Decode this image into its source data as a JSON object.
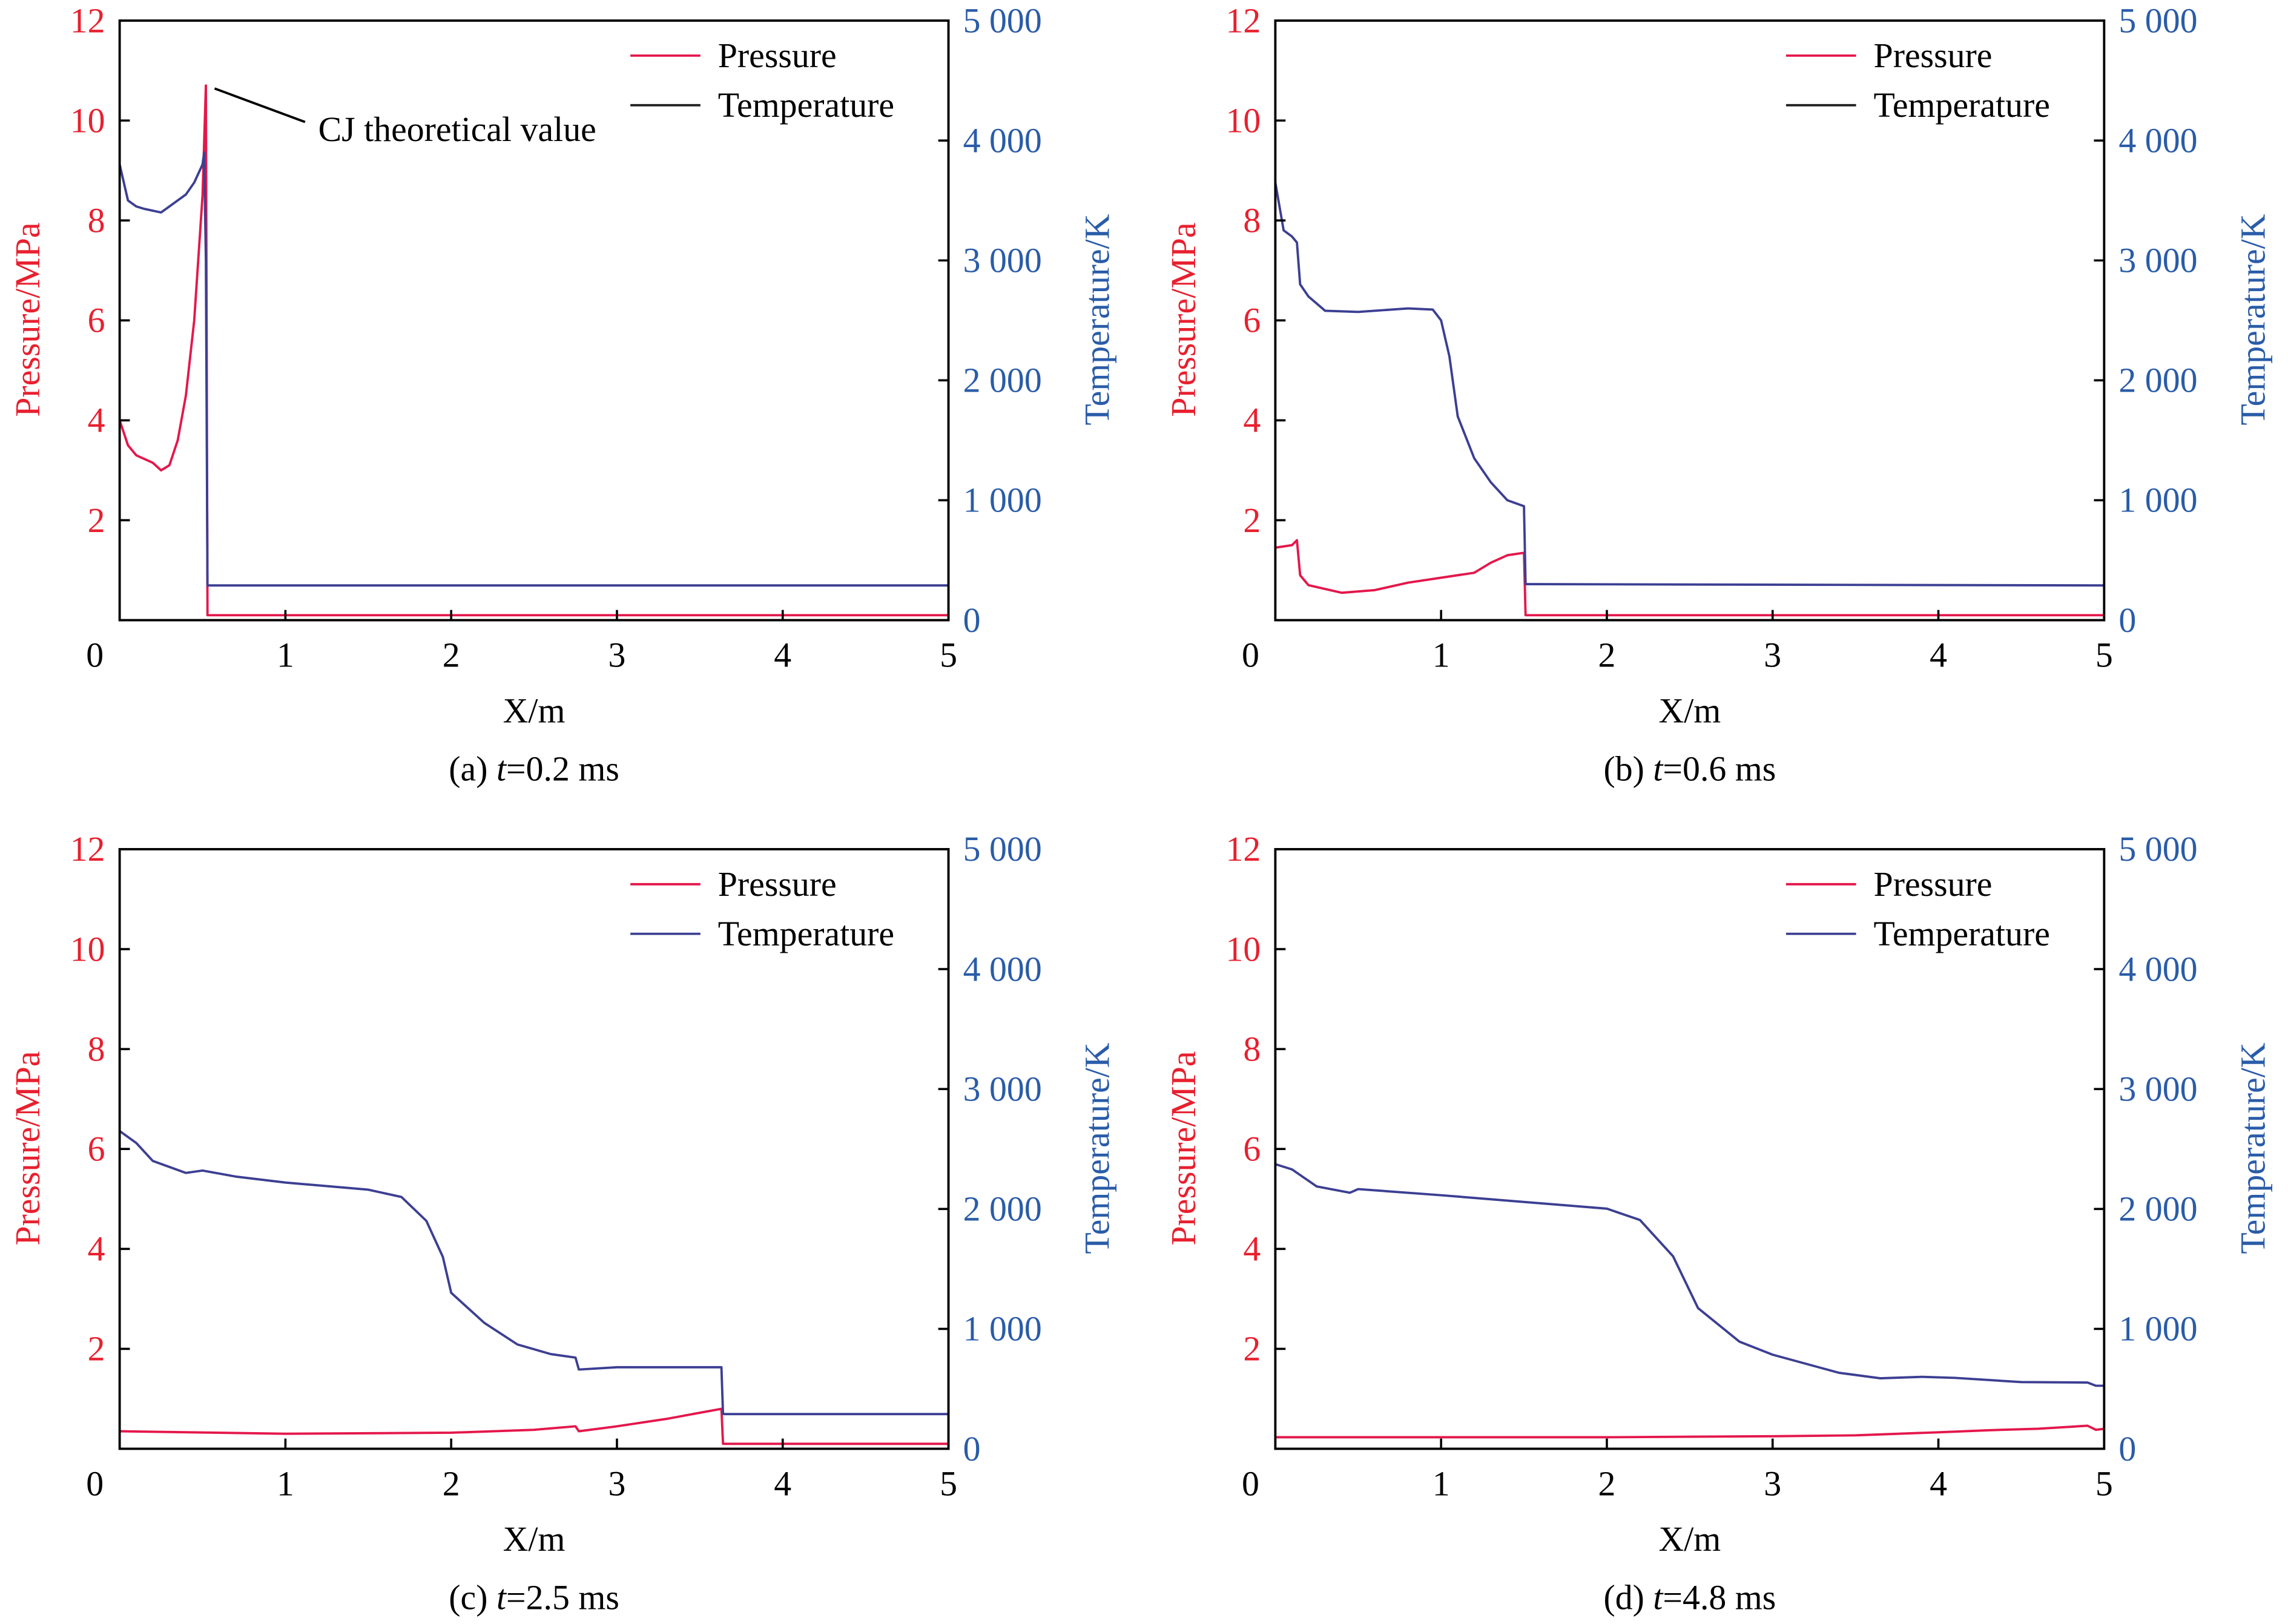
{
  "colors": {
    "pressure": "#e4174b",
    "temperature": "#3c3f92",
    "left_axis_text": "#e8202f",
    "right_axis_text": "#2a5ca8",
    "axis": "#000000"
  },
  "chart_data": [
    {
      "type": "line",
      "caption": "(a) t=0.2 ms",
      "caption_prefix": "(a) ",
      "caption_t": "t",
      "caption_rest": "=0.2 ms",
      "xlabel": "X/m",
      "ylabel": "Pressure/MPa",
      "y2label": "Temperature/K",
      "xlim": [
        0,
        5
      ],
      "ylim": [
        0,
        12
      ],
      "y2lim": [
        0,
        5000
      ],
      "xticks": [
        "0",
        "1",
        "2",
        "3",
        "4",
        "5"
      ],
      "yticks": [
        "2",
        "4",
        "6",
        "8",
        "10",
        "12"
      ],
      "y2ticks": [
        "0",
        "1 000",
        "2 000",
        "3 000",
        "4 000",
        "5 000"
      ],
      "legend": [
        "Pressure",
        "Temperature"
      ],
      "legend_position": "top-right",
      "legend_temp_color": "#222222",
      "annotation": {
        "text": "CJ theoretical value",
        "x": 0.52,
        "y": 10.7
      },
      "series": [
        {
          "name": "Pressure",
          "axis": "left",
          "x": [
            0,
            0.05,
            0.1,
            0.2,
            0.25,
            0.3,
            0.35,
            0.4,
            0.45,
            0.5,
            0.52,
            0.53,
            5
          ],
          "y": [
            4.0,
            3.5,
            3.3,
            3.15,
            3.0,
            3.1,
            3.6,
            4.5,
            6.0,
            8.5,
            10.7,
            0.1,
            0.1
          ]
        },
        {
          "name": "Temperature",
          "axis": "right",
          "x": [
            0,
            0.05,
            0.1,
            0.15,
            0.25,
            0.3,
            0.4,
            0.45,
            0.5,
            0.51,
            0.52,
            0.53,
            5
          ],
          "y": [
            3800,
            3500,
            3450,
            3430,
            3400,
            3450,
            3550,
            3650,
            3800,
            3900,
            3000,
            290,
            290
          ]
        }
      ]
    },
    {
      "type": "line",
      "caption": "(b) t=0.6 ms",
      "caption_prefix": "(b) ",
      "caption_t": "t",
      "caption_rest": "=0.6 ms",
      "xlabel": "X/m",
      "ylabel": "Pressure/MPa",
      "y2label": "Temperature/K",
      "xlim": [
        0,
        5
      ],
      "ylim": [
        0,
        12
      ],
      "y2lim": [
        0,
        5000
      ],
      "xticks": [
        "0",
        "1",
        "2",
        "3",
        "4",
        "5"
      ],
      "yticks": [
        "2",
        "4",
        "6",
        "8",
        "10",
        "12"
      ],
      "y2ticks": [
        "0",
        "1 000",
        "2 000",
        "3 000",
        "4 000",
        "5 000"
      ],
      "legend": [
        "Pressure",
        "Temperature"
      ],
      "legend_position": "top-right",
      "legend_temp_color": "#222222",
      "series": [
        {
          "name": "Pressure",
          "axis": "left",
          "x": [
            0,
            0.1,
            0.13,
            0.15,
            0.2,
            0.4,
            0.6,
            0.8,
            1.0,
            1.2,
            1.3,
            1.4,
            1.5,
            1.51,
            5
          ],
          "y": [
            1.45,
            1.5,
            1.6,
            0.9,
            0.7,
            0.55,
            0.6,
            0.75,
            0.85,
            0.95,
            1.15,
            1.3,
            1.35,
            0.1,
            0.1
          ]
        },
        {
          "name": "Temperature",
          "axis": "right",
          "x": [
            0,
            0.05,
            0.1,
            0.13,
            0.15,
            0.2,
            0.3,
            0.5,
            0.8,
            0.95,
            1.0,
            1.05,
            1.1,
            1.2,
            1.3,
            1.4,
            1.5,
            1.51,
            5
          ],
          "y": [
            3650,
            3250,
            3200,
            3150,
            2800,
            2700,
            2580,
            2570,
            2600,
            2590,
            2500,
            2200,
            1700,
            1350,
            1150,
            1000,
            950,
            300,
            290
          ]
        }
      ]
    },
    {
      "type": "line",
      "caption": "(c) t=2.5 ms",
      "caption_prefix": "(c) ",
      "caption_t": "t",
      "caption_rest": "=2.5 ms",
      "xlabel": "X/m",
      "ylabel": "Pressure/MPa",
      "y2label": "Temperature/K",
      "xlim": [
        0,
        5
      ],
      "ylim": [
        0,
        12
      ],
      "y2lim": [
        0,
        5000
      ],
      "xticks": [
        "0",
        "1",
        "2",
        "3",
        "4",
        "5"
      ],
      "yticks": [
        "2",
        "4",
        "6",
        "8",
        "10",
        "12"
      ],
      "y2ticks": [
        "0",
        "1 000",
        "2 000",
        "3 000",
        "4 000",
        "5 000"
      ],
      "legend": [
        "Pressure",
        "Temperature"
      ],
      "legend_position": "top-right",
      "legend_temp_color": "#3c3f92",
      "series": [
        {
          "name": "Pressure",
          "axis": "left",
          "x": [
            0,
            1,
            2,
            2.5,
            2.75,
            2.77,
            3,
            3.3,
            3.63,
            3.64,
            5
          ],
          "y": [
            0.35,
            0.3,
            0.32,
            0.38,
            0.45,
            0.35,
            0.45,
            0.6,
            0.8,
            0.1,
            0.1
          ]
        },
        {
          "name": "Temperature",
          "axis": "right",
          "x": [
            0,
            0.1,
            0.2,
            0.4,
            0.5,
            0.7,
            1.0,
            1.5,
            1.7,
            1.85,
            1.95,
            2.0,
            2.2,
            2.4,
            2.6,
            2.75,
            2.77,
            3.0,
            3.2,
            3.63,
            3.64,
            5
          ],
          "y": [
            2650,
            2550,
            2400,
            2300,
            2320,
            2270,
            2220,
            2160,
            2100,
            1900,
            1600,
            1300,
            1050,
            870,
            790,
            760,
            660,
            680,
            680,
            680,
            290,
            290
          ]
        }
      ]
    },
    {
      "type": "line",
      "caption": "(d) t=4.8 ms",
      "caption_prefix": "(d) ",
      "caption_t": "t",
      "caption_rest": "=4.8 ms",
      "xlabel": "X/m",
      "ylabel": "Pressure/MPa",
      "y2label": "Temperature/K",
      "xlim": [
        0,
        5
      ],
      "ylim": [
        0,
        12
      ],
      "y2lim": [
        0,
        5000
      ],
      "xticks": [
        "0",
        "1",
        "2",
        "3",
        "4",
        "5"
      ],
      "yticks": [
        "2",
        "4",
        "6",
        "8",
        "10",
        "12"
      ],
      "y2ticks": [
        "0",
        "1 000",
        "2 000",
        "3 000",
        "4 000",
        "5 000"
      ],
      "legend": [
        "Pressure",
        "Temperature"
      ],
      "legend_position": "top-right",
      "legend_temp_color": "#3c3f92",
      "series": [
        {
          "name": "Pressure",
          "axis": "left",
          "x": [
            0,
            1,
            2,
            3,
            3.5,
            4.0,
            4.3,
            4.6,
            4.9,
            4.95,
            5
          ],
          "y": [
            0.23,
            0.23,
            0.23,
            0.25,
            0.27,
            0.33,
            0.37,
            0.4,
            0.46,
            0.38,
            0.4
          ]
        },
        {
          "name": "Temperature",
          "axis": "right",
          "x": [
            0,
            0.1,
            0.25,
            0.45,
            0.5,
            1.0,
            2.0,
            2.2,
            2.4,
            2.55,
            2.8,
            3.0,
            3.4,
            3.65,
            3.9,
            4.1,
            4.5,
            4.9,
            4.95,
            5
          ],
          "y": [
            2373,
            2330,
            2187,
            2135,
            2165,
            2114,
            2002,
            1907,
            1605,
            1173,
            893,
            785,
            634,
            587,
            600,
            591,
            556,
            552,
            526,
            526
          ]
        }
      ]
    }
  ]
}
